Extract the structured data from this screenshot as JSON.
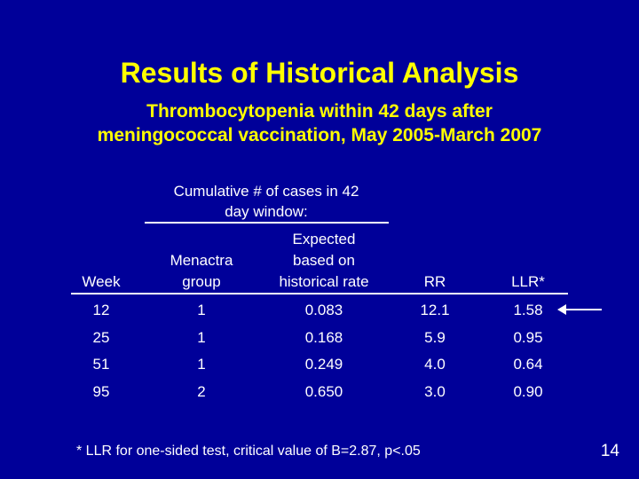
{
  "slide": {
    "title": "Results of Historical Analysis",
    "subtitle_line1": "Thrombocytopenia within 42 days after",
    "subtitle_line2": "meningococcal vaccination, May 2005-March 2007",
    "group_header_line1": "Cumulative # of cases in 42",
    "group_header_line2": "day window:",
    "columns": {
      "week": [
        "Week"
      ],
      "menactra": [
        "Menactra",
        "group"
      ],
      "expected": [
        "Expected",
        "based on",
        "historical rate"
      ],
      "rr": [
        "RR"
      ],
      "llr": [
        "LLR*"
      ]
    },
    "rows": [
      {
        "week": "12",
        "menactra": "1",
        "expected": "0.083",
        "rr": "12.1",
        "llr": "1.58"
      },
      {
        "week": "25",
        "menactra": "1",
        "expected": "0.168",
        "rr": "5.9",
        "llr": "0.95"
      },
      {
        "week": "51",
        "menactra": "1",
        "expected": "0.249",
        "rr": "4.0",
        "llr": "0.64"
      },
      {
        "week": "95",
        "menactra": "2",
        "expected": "0.650",
        "rr": "3.0",
        "llr": "0.90"
      }
    ],
    "footnote": "*  LLR for one-sided test, critical value of B=2.87, p<.05",
    "page_number": "14",
    "arrow_icon": "left-arrow-icon",
    "colors": {
      "background": "#000099",
      "title": "#FFFF00",
      "text": "#FFFFFF"
    }
  }
}
